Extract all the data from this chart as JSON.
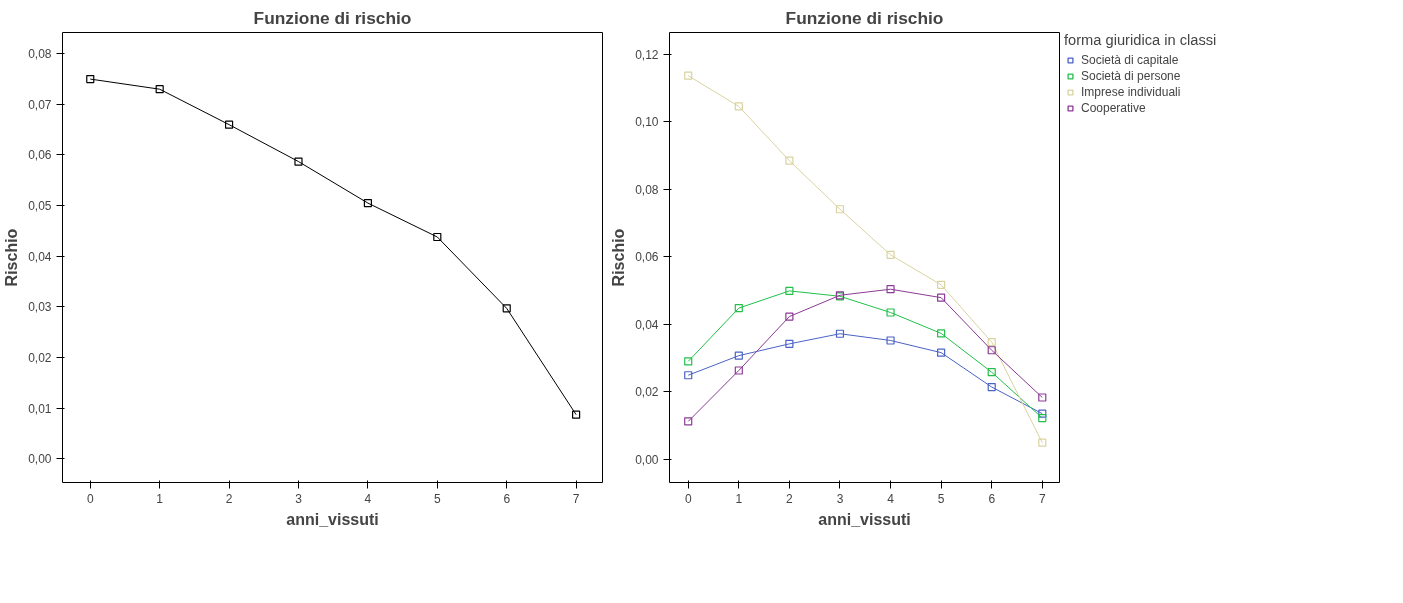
{
  "chart_data": [
    {
      "type": "line",
      "title": "Funzione di rischio",
      "xlabel": "anni_vissuti",
      "ylabel": "Rischio",
      "x": [
        0,
        1,
        2,
        3,
        4,
        5,
        6,
        7
      ],
      "marker": "square",
      "line_style": "solid",
      "grid": false,
      "legend": false,
      "series": [
        {
          "color": "#000000",
          "values": [
            0.075,
            0.073,
            0.066,
            0.0587,
            0.0505,
            0.0438,
            0.0297,
            0.0087
          ]
        }
      ],
      "xlim": [
        -0.4,
        7.38
      ],
      "ylim": [
        -0.0047,
        0.0842
      ],
      "xticks": [
        0,
        1,
        2,
        3,
        4,
        5,
        6,
        7
      ],
      "yticks": [
        {
          "value": 0,
          "label": "0,00"
        },
        {
          "value": 0.01,
          "label": "0,01"
        },
        {
          "value": 0.02,
          "label": "0,02"
        },
        {
          "value": 0.03,
          "label": "0,03"
        },
        {
          "value": 0.04,
          "label": "0,04"
        },
        {
          "value": 0.05,
          "label": "0,05"
        },
        {
          "value": 0.06,
          "label": "0,06"
        },
        {
          "value": 0.07,
          "label": "0,07"
        },
        {
          "value": 0.08,
          "label": "0,08"
        }
      ]
    },
    {
      "type": "line",
      "title": "Funzione di rischio",
      "xlabel": "anni_vissuti",
      "ylabel": "Rischio",
      "legend_title": "forma giuridica in classi",
      "x": [
        0,
        1,
        2,
        3,
        4,
        5,
        6,
        7
      ],
      "marker": "square",
      "line_style": "solid",
      "grid": false,
      "legend": "right",
      "series": [
        {
          "name": "Società di capitale",
          "color": "#4a63c4",
          "values": [
            0.0249,
            0.0307,
            0.0342,
            0.0372,
            0.0352,
            0.0316,
            0.0214,
            0.0135
          ]
        },
        {
          "name": "Società di persone",
          "color": "#22c04a",
          "values": [
            0.029,
            0.0448,
            0.0499,
            0.0483,
            0.0435,
            0.0373,
            0.0258,
            0.0122
          ]
        },
        {
          "name": "Imprese individuali",
          "color": "#d9d3a0",
          "values": [
            0.1137,
            0.1046,
            0.0885,
            0.0741,
            0.0606,
            0.0517,
            0.0347,
            0.0049
          ]
        },
        {
          "name": "Cooperative",
          "color": "#8b3a96",
          "values": [
            0.0112,
            0.0263,
            0.0423,
            0.0486,
            0.0504,
            0.0479,
            0.0323,
            0.0183
          ]
        }
      ],
      "xlim": [
        -0.37,
        7.34
      ],
      "ylim": [
        -0.0069,
        0.1265
      ],
      "xticks": [
        0,
        1,
        2,
        3,
        4,
        5,
        6,
        7
      ],
      "yticks": [
        {
          "value": 0,
          "label": "0,00"
        },
        {
          "value": 0.02,
          "label": "0,02"
        },
        {
          "value": 0.04,
          "label": "0,04"
        },
        {
          "value": 0.06,
          "label": "0,06"
        },
        {
          "value": 0.08,
          "label": "0,08"
        },
        {
          "value": 0.1,
          "label": "0,10"
        },
        {
          "value": 0.12,
          "label": "0,12"
        }
      ]
    }
  ]
}
